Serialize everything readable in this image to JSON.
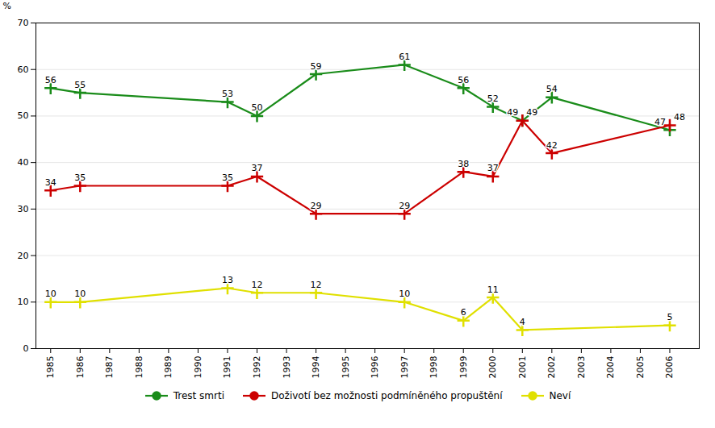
{
  "chart_data": {
    "type": "line",
    "ylabel": "%",
    "xlim": [
      1984.5,
      2007.0
    ],
    "xticks": [
      1985,
      1986,
      1987,
      1988,
      1989,
      1990,
      1991,
      1992,
      1993,
      1994,
      1995,
      1996,
      1997,
      1998,
      1999,
      2000,
      2001,
      2002,
      2003,
      2004,
      2005,
      2006
    ],
    "ylim": [
      0,
      70
    ],
    "yticks": [
      0,
      10,
      20,
      30,
      40,
      50,
      60,
      70
    ],
    "grid": true,
    "legend": "bottom",
    "marker": "plus",
    "data_labels": true,
    "series": [
      {
        "name": "Trest smrti",
        "color": "#1a8c1a",
        "x": [
          1985,
          1986,
          1991,
          1992,
          1994,
          1997,
          1999,
          2000,
          2001,
          2002,
          2006
        ],
        "values": [
          56,
          55,
          53,
          50,
          59,
          61,
          56,
          52,
          49,
          54,
          47
        ]
      },
      {
        "name": "Doživotí bez možnosti podmíněného propuštění",
        "color": "#cc0000",
        "x": [
          1985,
          1986,
          1991,
          1992,
          1994,
          1997,
          1999,
          2000,
          2001,
          2002,
          2006
        ],
        "values": [
          34,
          35,
          35,
          37,
          29,
          29,
          38,
          37,
          49,
          42,
          48
        ]
      },
      {
        "name": "Neví",
        "color": "#e0e000",
        "x": [
          1985,
          1986,
          1991,
          1992,
          1994,
          1997,
          1999,
          2000,
          2001,
          2006
        ],
        "values": [
          10,
          10,
          13,
          12,
          12,
          10,
          6,
          11,
          4,
          5
        ]
      }
    ]
  }
}
